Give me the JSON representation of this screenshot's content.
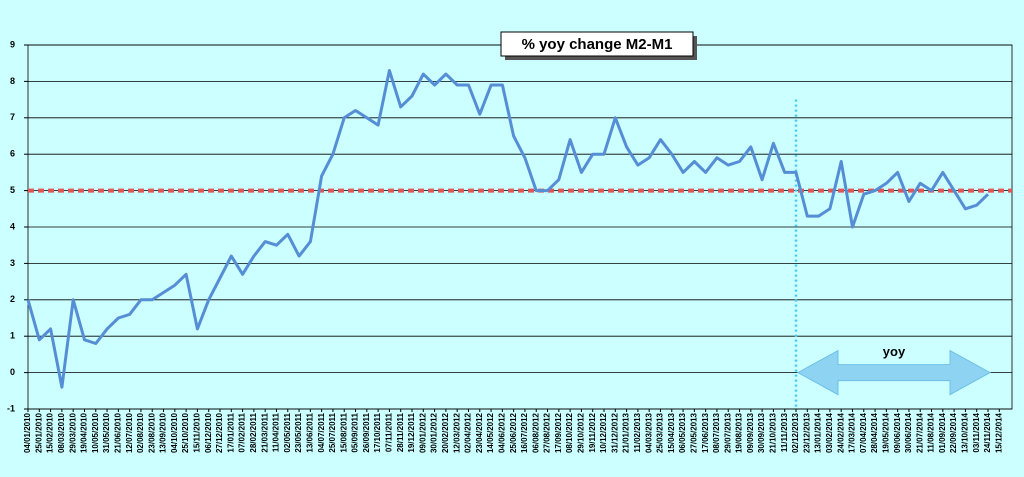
{
  "chart_data": {
    "type": "line",
    "title": "% yoy change M2-M1",
    "categories": [
      "04/01/2010",
      "25/01/2010",
      "15/02/2010",
      "08/03/2010",
      "29/03/2010",
      "19/04/2010",
      "10/05/2010",
      "31/05/2010",
      "21/06/2010",
      "12/07/2010",
      "02/08/2010",
      "23/08/2010",
      "13/09/2010",
      "04/10/2010",
      "25/10/2010",
      "15/11/2010",
      "06/12/2010",
      "27/12/2010",
      "17/01/2011",
      "07/02/2011",
      "28/02/2011",
      "21/03/2011",
      "11/04/2011",
      "02/05/2011",
      "23/05/2011",
      "13/06/2011",
      "04/07/2011",
      "25/07/2011",
      "15/08/2011",
      "05/09/2011",
      "26/09/2011",
      "17/10/2011",
      "07/11/2011",
      "28/11/2011",
      "19/12/2011",
      "09/01/2012",
      "30/01/2012",
      "20/02/2012",
      "12/03/2012",
      "02/04/2012",
      "23/04/2012",
      "14/05/2012",
      "04/06/2012",
      "25/06/2012",
      "16/07/2012",
      "06/08/2012",
      "27/08/2012",
      "17/09/2012",
      "08/10/2012",
      "29/10/2012",
      "19/11/2012",
      "10/12/2012",
      "31/12/2012",
      "21/01/2013",
      "11/02/2013",
      "04/03/2013",
      "25/03/2013",
      "15/04/2013",
      "06/05/2013",
      "27/05/2013",
      "17/06/2013",
      "08/07/2013",
      "29/07/2013",
      "19/08/2013",
      "09/09/2013",
      "30/09/2013",
      "21/10/2013",
      "11/11/2013",
      "02/12/2013",
      "23/12/2013",
      "13/01/2014",
      "03/02/2014",
      "24/02/2014",
      "17/03/2014",
      "07/04/2014",
      "28/04/2014",
      "19/05/2014",
      "09/06/2014",
      "30/06/2014",
      "21/07/2014",
      "11/08/2014",
      "01/09/2014",
      "22/09/2014",
      "13/10/2014",
      "03/11/2014",
      "24/11/2014",
      "15/12/2014"
    ],
    "series": [
      {
        "name": "% yoy change M2-M1",
        "color": "#558ed5",
        "values": [
          2.0,
          0.9,
          1.2,
          -0.4,
          2.0,
          0.9,
          0.8,
          1.2,
          1.5,
          1.6,
          2.0,
          2.0,
          2.2,
          2.4,
          2.7,
          1.2,
          2.0,
          2.6,
          3.2,
          2.7,
          3.2,
          3.6,
          3.5,
          3.8,
          3.2,
          3.6,
          5.4,
          6.0,
          7.0,
          7.2,
          7.0,
          6.8,
          8.3,
          7.3,
          7.6,
          8.2,
          7.9,
          8.2,
          7.9,
          7.9,
          7.1,
          7.9,
          7.9,
          6.5,
          5.9,
          5.0,
          5.0,
          5.3,
          6.4,
          5.5,
          6.0,
          6.0,
          7.0,
          6.2,
          5.7,
          5.9,
          6.4,
          6.0,
          5.5,
          5.8,
          5.5,
          5.9,
          5.7,
          5.8,
          6.2,
          5.3,
          6.3,
          5.5,
          5.5,
          4.3,
          4.3,
          4.5,
          5.8,
          4.0,
          4.9,
          5.0,
          5.2,
          5.5,
          4.7,
          5.2,
          5.0,
          5.5,
          5.0,
          4.5,
          4.6,
          4.9,
          null
        ]
      }
    ],
    "ylim": [
      -1,
      9
    ],
    "yticks": [
      -1,
      0,
      1,
      2,
      3,
      4,
      5,
      6,
      7,
      8,
      9
    ],
    "grid": true,
    "hline": 5,
    "vline": "02/12/2013",
    "annotation": "yoy"
  }
}
